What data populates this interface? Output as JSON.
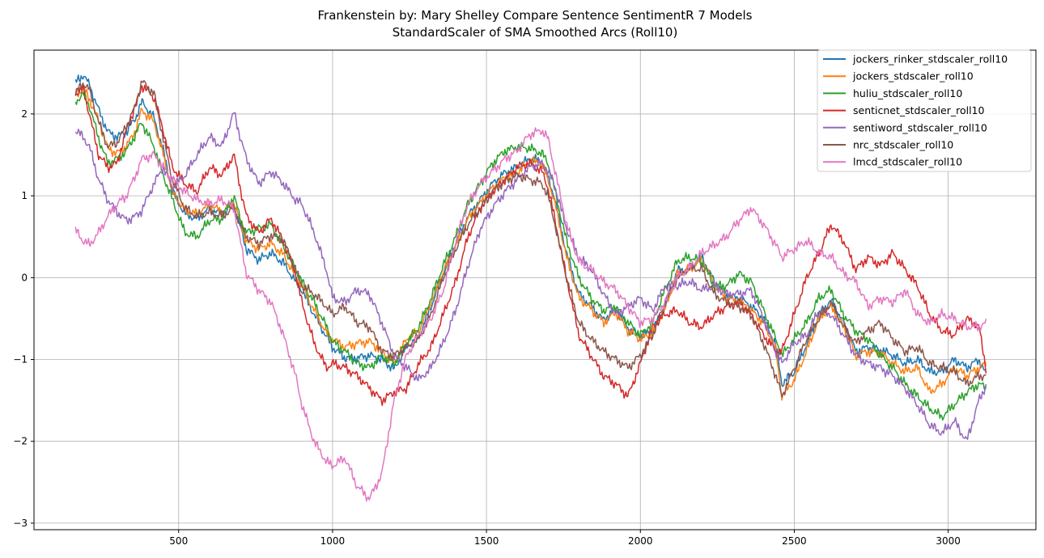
{
  "chart_data": {
    "type": "line",
    "title": "Frankenstein by: Mary Shelley Compare Sentence SentimentR 7 Models",
    "subtitle": "StandardScaler of SMA Smoothed Arcs (Roll10)",
    "xlabel": "",
    "ylabel": "",
    "xlim": [
      30,
      3285
    ],
    "ylim": [
      -3.08,
      2.78
    ],
    "xticks": [
      500,
      1000,
      1500,
      2000,
      2500,
      3000
    ],
    "yticks": [
      -3,
      -2,
      -1,
      0,
      1,
      2
    ],
    "ytick_labels": [
      "−3",
      "−2",
      "−1",
      "0",
      "1",
      "2"
    ],
    "grid": true,
    "legend_position": "top-right",
    "series": [
      {
        "name": "jockers_rinker_stdscaler_roll10",
        "color": "#1f77b4",
        "x": [
          165,
          190,
          210,
          240,
          270,
          300,
          330,
          360,
          380,
          420,
          450,
          480,
          520,
          560,
          600,
          640,
          680,
          700,
          720,
          760,
          800,
          840,
          880,
          900,
          940,
          980,
          1000,
          1040,
          1080,
          1120,
          1160,
          1200,
          1240,
          1280,
          1320,
          1360,
          1400,
          1440,
          1480,
          1520,
          1560,
          1600,
          1640,
          1680,
          1700,
          1720,
          1760,
          1800,
          1840,
          1880,
          1920,
          1960,
          2000,
          2040,
          2080,
          2120,
          2160,
          2200,
          2240,
          2280,
          2320,
          2360,
          2400,
          2440,
          2460,
          2500,
          2540,
          2580,
          2620,
          2660,
          2700,
          2740,
          2780,
          2820,
          2860,
          2900,
          2940,
          2980,
          3020,
          3060,
          3100,
          3125
        ],
        "y": [
          2.38,
          2.48,
          2.35,
          2.05,
          1.78,
          1.72,
          1.78,
          1.95,
          2.15,
          1.95,
          1.55,
          1.05,
          0.78,
          0.72,
          0.85,
          0.78,
          0.88,
          0.62,
          0.35,
          0.22,
          0.3,
          0.18,
          -0.05,
          -0.15,
          -0.45,
          -0.72,
          -0.85,
          -0.98,
          -0.98,
          -0.95,
          -1.0,
          -1.12,
          -0.85,
          -0.72,
          -0.35,
          0.05,
          0.42,
          0.75,
          0.95,
          1.15,
          1.28,
          1.35,
          1.45,
          1.42,
          1.22,
          1.0,
          0.3,
          -0.2,
          -0.35,
          -0.52,
          -0.38,
          -0.62,
          -0.72,
          -0.65,
          -0.35,
          0.08,
          0.12,
          0.25,
          -0.05,
          -0.22,
          -0.25,
          -0.35,
          -0.5,
          -0.82,
          -1.3,
          -1.15,
          -0.82,
          -0.45,
          -0.28,
          -0.55,
          -0.9,
          -0.85,
          -0.88,
          -0.95,
          -1.05,
          -1.0,
          -1.15,
          -1.15,
          -1.0,
          -1.1,
          -1.0,
          -1.2
        ]
      },
      {
        "name": "jockers_stdscaler_roll10",
        "color": "#ff7f0e",
        "x": [
          165,
          190,
          210,
          240,
          270,
          300,
          330,
          360,
          380,
          420,
          450,
          480,
          520,
          560,
          600,
          640,
          680,
          700,
          720,
          760,
          800,
          840,
          880,
          900,
          940,
          980,
          1000,
          1040,
          1080,
          1120,
          1160,
          1200,
          1240,
          1280,
          1320,
          1360,
          1400,
          1440,
          1480,
          1520,
          1560,
          1600,
          1640,
          1680,
          1700,
          1720,
          1760,
          1800,
          1840,
          1880,
          1920,
          1960,
          2000,
          2040,
          2080,
          2120,
          2160,
          2200,
          2240,
          2280,
          2320,
          2360,
          2400,
          2440,
          2460,
          2500,
          2540,
          2580,
          2620,
          2660,
          2700,
          2740,
          2780,
          2820,
          2860,
          2900,
          2940,
          2980,
          3020,
          3060,
          3100,
          3125
        ],
        "y": [
          2.22,
          2.32,
          2.18,
          1.92,
          1.58,
          1.52,
          1.6,
          1.8,
          2.05,
          1.9,
          1.5,
          1.05,
          0.82,
          0.78,
          0.9,
          0.8,
          0.92,
          0.68,
          0.45,
          0.35,
          0.42,
          0.28,
          0.02,
          -0.1,
          -0.4,
          -0.68,
          -0.75,
          -0.85,
          -0.8,
          -0.78,
          -0.9,
          -1.05,
          -0.75,
          -0.65,
          -0.3,
          0.08,
          0.38,
          0.72,
          0.92,
          1.1,
          1.22,
          1.28,
          1.42,
          1.4,
          1.2,
          0.95,
          0.25,
          -0.25,
          -0.38,
          -0.55,
          -0.42,
          -0.65,
          -0.75,
          -0.68,
          -0.38,
          0.05,
          0.1,
          0.22,
          -0.08,
          -0.25,
          -0.28,
          -0.4,
          -0.55,
          -0.88,
          -1.45,
          -1.25,
          -0.9,
          -0.5,
          -0.35,
          -0.6,
          -0.95,
          -0.9,
          -0.92,
          -1.05,
          -1.15,
          -1.1,
          -1.4,
          -1.3,
          -1.1,
          -1.2,
          -1.1,
          -1.05
        ]
      },
      {
        "name": "huliu_stdscaler_roll10",
        "color": "#2ca02c",
        "x": [
          165,
          190,
          210,
          240,
          270,
          300,
          330,
          360,
          380,
          420,
          450,
          480,
          520,
          560,
          600,
          640,
          680,
          700,
          720,
          760,
          800,
          840,
          880,
          900,
          940,
          980,
          1000,
          1040,
          1080,
          1120,
          1160,
          1200,
          1240,
          1280,
          1320,
          1360,
          1400,
          1440,
          1480,
          1520,
          1560,
          1600,
          1640,
          1680,
          1700,
          1720,
          1760,
          1800,
          1840,
          1880,
          1920,
          1960,
          2000,
          2040,
          2080,
          2120,
          2160,
          2200,
          2240,
          2280,
          2320,
          2360,
          2400,
          2440,
          2460,
          2500,
          2540,
          2580,
          2620,
          2660,
          2700,
          2740,
          2780,
          2820,
          2860,
          2900,
          2940,
          2980,
          3020,
          3060,
          3100,
          3125
        ],
        "y": [
          2.15,
          2.25,
          2.1,
          1.7,
          1.4,
          1.45,
          1.55,
          1.75,
          1.9,
          1.6,
          1.25,
          0.95,
          0.55,
          0.5,
          0.7,
          0.72,
          1.0,
          0.72,
          0.55,
          0.6,
          0.65,
          0.38,
          0.1,
          -0.05,
          -0.3,
          -0.6,
          -0.78,
          -0.9,
          -1.05,
          -1.1,
          -0.95,
          -1.05,
          -0.8,
          -0.6,
          -0.25,
          0.15,
          0.5,
          0.9,
          1.15,
          1.4,
          1.55,
          1.6,
          1.58,
          1.52,
          1.4,
          1.1,
          0.45,
          0.0,
          -0.25,
          -0.4,
          -0.35,
          -0.55,
          -0.7,
          -0.55,
          -0.15,
          0.2,
          0.25,
          0.2,
          -0.1,
          -0.1,
          0.05,
          -0.05,
          -0.4,
          -0.75,
          -0.95,
          -0.75,
          -0.55,
          -0.25,
          -0.15,
          -0.45,
          -0.65,
          -0.75,
          -0.95,
          -1.1,
          -1.3,
          -1.45,
          -1.6,
          -1.7,
          -1.55,
          -1.4,
          -1.3,
          -1.35
        ]
      },
      {
        "name": "senticnet_stdscaler_roll10",
        "color": "#d62728",
        "x": [
          165,
          190,
          210,
          240,
          270,
          300,
          330,
          360,
          380,
          420,
          450,
          480,
          520,
          560,
          600,
          640,
          680,
          700,
          720,
          760,
          800,
          840,
          880,
          900,
          940,
          980,
          1000,
          1040,
          1080,
          1120,
          1160,
          1200,
          1240,
          1280,
          1320,
          1360,
          1400,
          1440,
          1480,
          1520,
          1560,
          1600,
          1640,
          1680,
          1700,
          1720,
          1760,
          1800,
          1840,
          1880,
          1920,
          1960,
          2000,
          2040,
          2080,
          2120,
          2160,
          2200,
          2240,
          2280,
          2320,
          2360,
          2400,
          2440,
          2460,
          2500,
          2540,
          2580,
          2620,
          2660,
          2700,
          2740,
          2780,
          2820,
          2860,
          2900,
          2940,
          2980,
          3020,
          3060,
          3100,
          3125
        ],
        "y": [
          2.25,
          2.3,
          2.0,
          1.5,
          1.35,
          1.4,
          1.8,
          2.1,
          2.35,
          2.2,
          1.8,
          1.35,
          1.15,
          1.05,
          1.35,
          1.25,
          1.5,
          1.1,
          0.75,
          0.55,
          0.72,
          0.45,
          0.05,
          -0.3,
          -0.8,
          -1.1,
          -1.05,
          -1.1,
          -1.2,
          -1.35,
          -1.5,
          -1.4,
          -1.35,
          -1.05,
          -0.85,
          -0.45,
          -0.05,
          0.5,
          0.85,
          1.05,
          1.2,
          1.35,
          1.4,
          1.3,
          1.1,
          0.75,
          0.0,
          -0.7,
          -0.95,
          -1.2,
          -1.3,
          -1.45,
          -1.05,
          -0.6,
          -0.45,
          -0.4,
          -0.55,
          -0.6,
          -0.45,
          -0.35,
          -0.3,
          -0.45,
          -0.7,
          -0.9,
          -0.9,
          -0.45,
          0.0,
          0.3,
          0.65,
          0.45,
          0.1,
          0.25,
          0.15,
          0.3,
          0.1,
          -0.1,
          -0.45,
          -0.65,
          -0.7,
          -0.5,
          -0.6,
          -1.15
        ]
      },
      {
        "name": "sentiword_stdscaler_roll10",
        "color": "#9467bd",
        "x": [
          165,
          190,
          210,
          240,
          270,
          300,
          330,
          360,
          380,
          420,
          450,
          480,
          520,
          560,
          600,
          640,
          680,
          700,
          720,
          760,
          800,
          840,
          880,
          900,
          940,
          980,
          1000,
          1040,
          1080,
          1120,
          1160,
          1200,
          1240,
          1280,
          1320,
          1360,
          1400,
          1440,
          1480,
          1520,
          1560,
          1600,
          1640,
          1680,
          1700,
          1720,
          1760,
          1800,
          1840,
          1880,
          1920,
          1960,
          2000,
          2040,
          2080,
          2120,
          2160,
          2200,
          2240,
          2280,
          2320,
          2360,
          2400,
          2440,
          2460,
          2500,
          2540,
          2580,
          2620,
          2660,
          2700,
          2740,
          2780,
          2820,
          2860,
          2900,
          2940,
          2980,
          3020,
          3060,
          3100,
          3125
        ],
        "y": [
          1.8,
          1.72,
          1.6,
          1.2,
          0.95,
          0.8,
          0.7,
          0.75,
          0.82,
          1.15,
          1.35,
          1.1,
          1.25,
          1.5,
          1.72,
          1.6,
          2.02,
          1.72,
          1.45,
          1.15,
          1.3,
          1.15,
          0.95,
          0.9,
          0.55,
          0.1,
          -0.25,
          -0.3,
          -0.15,
          -0.2,
          -0.55,
          -0.95,
          -1.1,
          -1.25,
          -1.1,
          -0.8,
          -0.4,
          0.15,
          0.6,
          0.85,
          1.05,
          1.2,
          1.35,
          1.4,
          1.3,
          1.15,
          0.6,
          0.25,
          0.1,
          -0.2,
          -0.45,
          -0.35,
          -0.25,
          -0.4,
          -0.1,
          -0.1,
          -0.05,
          -0.15,
          -0.1,
          -0.2,
          -0.2,
          -0.15,
          -0.5,
          -0.9,
          -1.05,
          -0.8,
          -0.7,
          -0.4,
          -0.45,
          -0.7,
          -0.95,
          -1.05,
          -1.1,
          -1.2,
          -1.35,
          -1.55,
          -1.8,
          -1.9,
          -1.75,
          -2.0,
          -1.5,
          -1.3
        ]
      },
      {
        "name": "nrc_stdscaler_roll10",
        "color": "#8c564b",
        "x": [
          165,
          190,
          210,
          240,
          270,
          300,
          330,
          360,
          380,
          420,
          450,
          480,
          520,
          560,
          600,
          640,
          680,
          700,
          720,
          760,
          800,
          840,
          880,
          900,
          940,
          980,
          1000,
          1040,
          1080,
          1120,
          1160,
          1200,
          1240,
          1280,
          1320,
          1360,
          1400,
          1440,
          1480,
          1520,
          1560,
          1600,
          1640,
          1680,
          1700,
          1720,
          1760,
          1800,
          1840,
          1880,
          1920,
          1960,
          2000,
          2040,
          2080,
          2120,
          2160,
          2200,
          2240,
          2280,
          2320,
          2360,
          2400,
          2440,
          2460,
          2500,
          2540,
          2580,
          2620,
          2660,
          2700,
          2740,
          2780,
          2820,
          2860,
          2900,
          2940,
          2980,
          3020,
          3060,
          3100,
          3125
        ],
        "y": [
          2.25,
          2.38,
          2.3,
          1.9,
          1.6,
          1.65,
          1.85,
          2.1,
          2.4,
          2.25,
          1.7,
          1.2,
          0.85,
          0.75,
          0.8,
          0.75,
          0.85,
          0.65,
          0.5,
          0.42,
          0.52,
          0.45,
          0.1,
          -0.1,
          -0.2,
          -0.35,
          -0.45,
          -0.35,
          -0.55,
          -0.6,
          -0.9,
          -0.95,
          -0.85,
          -0.75,
          -0.45,
          0.0,
          0.35,
          0.65,
          0.85,
          1.05,
          1.18,
          1.25,
          1.2,
          1.15,
          1.0,
          0.7,
          0.0,
          -0.55,
          -0.75,
          -0.9,
          -1.0,
          -1.1,
          -0.95,
          -0.7,
          -0.3,
          0.0,
          0.12,
          0.1,
          -0.2,
          -0.3,
          -0.35,
          -0.45,
          -0.8,
          -1.2,
          -1.45,
          -1.1,
          -0.75,
          -0.5,
          -0.3,
          -0.6,
          -0.8,
          -0.65,
          -0.55,
          -0.75,
          -0.9,
          -0.85,
          -1.05,
          -1.1,
          -1.15,
          -1.3,
          -1.2,
          -1.2
        ]
      },
      {
        "name": "lmcd_stdscaler_roll10",
        "color": "#e377c2",
        "x": [
          165,
          190,
          210,
          240,
          270,
          300,
          330,
          360,
          380,
          420,
          450,
          480,
          520,
          560,
          600,
          640,
          680,
          700,
          720,
          760,
          800,
          840,
          880,
          900,
          940,
          980,
          1000,
          1040,
          1080,
          1120,
          1160,
          1200,
          1240,
          1280,
          1320,
          1360,
          1400,
          1440,
          1480,
          1520,
          1560,
          1600,
          1640,
          1680,
          1700,
          1720,
          1760,
          1800,
          1840,
          1880,
          1920,
          1960,
          2000,
          2040,
          2080,
          2120,
          2160,
          2200,
          2240,
          2280,
          2320,
          2360,
          2400,
          2440,
          2460,
          2500,
          2540,
          2580,
          2620,
          2660,
          2700,
          2740,
          2780,
          2820,
          2860,
          2900,
          2940,
          2980,
          3020,
          3060,
          3100,
          3125
        ],
        "y": [
          0.58,
          0.45,
          0.4,
          0.55,
          0.75,
          0.9,
          1.0,
          1.25,
          1.45,
          1.5,
          1.35,
          1.2,
          1.05,
          0.95,
          0.9,
          0.95,
          0.85,
          0.45,
          0.05,
          -0.15,
          -0.3,
          -0.7,
          -1.2,
          -1.55,
          -2.0,
          -2.25,
          -2.3,
          -2.2,
          -2.55,
          -2.7,
          -2.4,
          -1.5,
          -0.95,
          -0.7,
          -0.5,
          -0.15,
          0.45,
          0.9,
          1.15,
          1.3,
          1.45,
          1.55,
          1.75,
          1.8,
          1.7,
          1.35,
          0.65,
          0.2,
          0.1,
          -0.05,
          -0.15,
          -0.35,
          -0.55,
          -0.5,
          -0.3,
          0.0,
          0.12,
          0.3,
          0.4,
          0.5,
          0.7,
          0.85,
          0.65,
          0.4,
          0.25,
          0.35,
          0.45,
          0.3,
          0.25,
          0.05,
          -0.05,
          -0.35,
          -0.25,
          -0.3,
          -0.15,
          -0.45,
          -0.55,
          -0.45,
          -0.5,
          -0.6,
          -0.6,
          -0.55
        ]
      }
    ]
  }
}
